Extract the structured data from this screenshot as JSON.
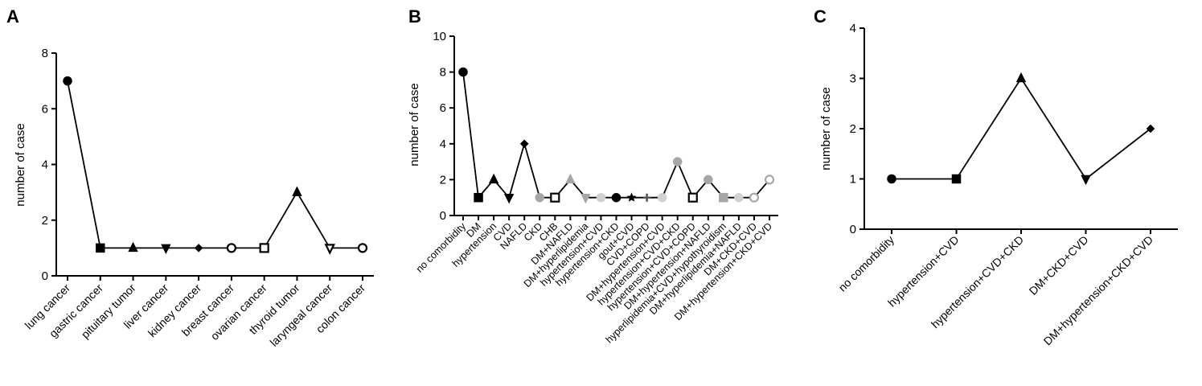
{
  "chart_data": [
    {
      "panel": "A",
      "type": "line",
      "ylabel": "number of case",
      "xlabel": "",
      "ylim": [
        0,
        8
      ],
      "yticks": [
        "0",
        "2",
        "4",
        "6",
        "8"
      ],
      "categories": [
        "lung cancer",
        "gastric cancer",
        "pituitary tumor",
        "liver cancer",
        "kidney cancer",
        "breast cancer",
        "ovarian cancer",
        "thyroid tumor",
        "laryngeal cancer",
        "colon cancer"
      ],
      "values": [
        7,
        1,
        1,
        1,
        1,
        1,
        1,
        3,
        1,
        1
      ],
      "markers": [
        "circle",
        "square",
        "triangle",
        "triangle-down",
        "diamond",
        "circle-open",
        "square-open",
        "triangle",
        "triangle-down-open",
        "circle-open"
      ],
      "grid": false
    },
    {
      "panel": "B",
      "type": "line",
      "ylabel": "number of case",
      "xlabel": "",
      "ylim": [
        0,
        10
      ],
      "yticks": [
        "0",
        "2",
        "4",
        "6",
        "8",
        "10"
      ],
      "categories": [
        "no comorbidity",
        "DM",
        "hypertension",
        "CVD",
        "NAFLD",
        "CKD",
        "CHB",
        "DM+NAFLD",
        "DM+hyperlipidemia",
        "hypertension+CVD",
        "hypertension+CKD",
        "gout+CVD",
        "CVD+COPD",
        "DM+hypertension+CVD",
        "hypertension+CVD+CKD",
        "hypertension+CVD+COPD",
        "DM+hypertension+NAFLD",
        "hyperlipidemia+CVD+hypothyroidism",
        "DM+hyperlipidemia+NAFLD",
        "DM+CKD+CVD",
        "DM+hypertension+CKD+CVD"
      ],
      "values": [
        8,
        1,
        2,
        1,
        4,
        1,
        1,
        2,
        1,
        1,
        1,
        1,
        1,
        1,
        3,
        1,
        2,
        1,
        1,
        1,
        2
      ],
      "markers": [
        "circle",
        "square",
        "triangle",
        "triangle-down",
        "diamond",
        "circle-gray",
        "square-open",
        "triangle-gray",
        "triangle-down-gray",
        "circle-light",
        "circle",
        "star",
        "cross",
        "circle-light",
        "circle-gray",
        "square-open",
        "circle-gray",
        "square-gray",
        "circle-light",
        "circle-gray-open",
        "circle-gray-open"
      ],
      "grid": false
    },
    {
      "panel": "C",
      "type": "line",
      "ylabel": "number of case",
      "xlabel": "",
      "ylim": [
        0,
        4
      ],
      "yticks": [
        "0",
        "1",
        "2",
        "3",
        "4"
      ],
      "categories": [
        "no comorbidity",
        "hypertension+CVD",
        "hypertension+CVD+CKD",
        "DM+CKD+CVD",
        "DM+hypertension+CKD+CVD"
      ],
      "values": [
        1,
        1,
        3,
        1,
        2
      ],
      "markers": [
        "circle",
        "square",
        "triangle",
        "triangle-down",
        "diamond"
      ],
      "grid": false
    }
  ]
}
